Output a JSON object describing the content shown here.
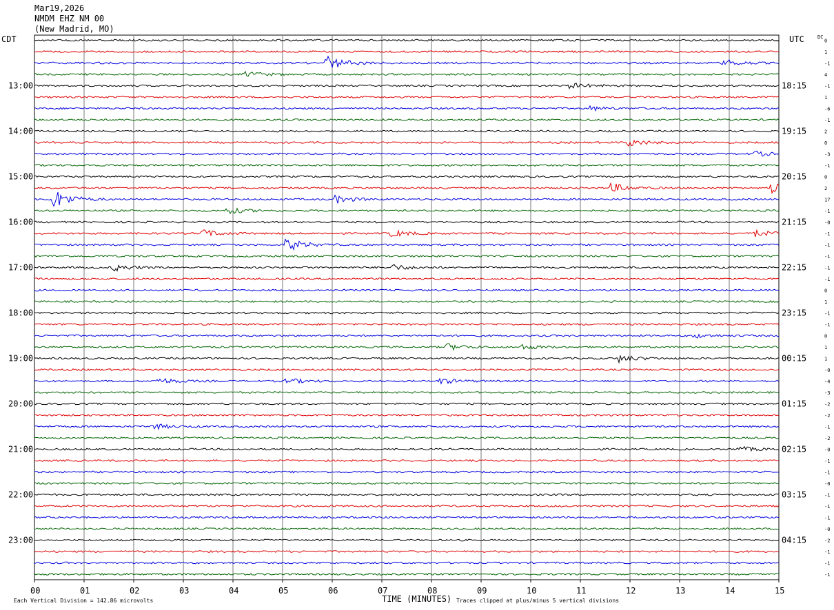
{
  "header": {
    "date": "Mar19,2026",
    "station": "NMDM EHZ NM 00",
    "location": "(New Madrid, MO)"
  },
  "chart_data": {
    "type": "line",
    "title": "",
    "left_timezone": "CDT",
    "right_timezone": "UTC",
    "dc_label": "DC",
    "xlabel": "TIME (MINUTES)",
    "x_ticks": [
      "00",
      "01",
      "02",
      "03",
      "04",
      "05",
      "06",
      "07",
      "08",
      "09",
      "10",
      "11",
      "12",
      "13",
      "14",
      "15"
    ],
    "xlim": [
      0,
      15
    ],
    "left_hour_labels": [
      "13:00",
      "14:00",
      "15:00",
      "16:00",
      "17:00",
      "18:00",
      "19:00",
      "20:00",
      "21:00",
      "22:00",
      "23:00"
    ],
    "right_hour_labels": [
      "18:15",
      "19:15",
      "20:15",
      "21:15",
      "22:15",
      "23:15",
      "00:15",
      "01:15",
      "02:15",
      "03:15",
      "04:15"
    ],
    "first_labeled_trace_index": 4,
    "traces_per_hour": 4,
    "trace_colors": [
      "#000000",
      "#e00000",
      "#0000e0",
      "#006400"
    ],
    "trace_count": 48,
    "dc_offsets": [
      "0",
      "1",
      "-1",
      "4",
      "-1",
      "1",
      "-6",
      "-1",
      "2",
      "0",
      "-3",
      "-1",
      "0",
      "2",
      "17",
      "-1",
      "-0",
      "-1",
      "-1",
      "-1",
      "-1",
      "-1",
      "0",
      "1",
      "-1",
      "-1",
      "0",
      "1",
      "1",
      "-0",
      "-4",
      "-3",
      "-2",
      "-2",
      "-1",
      "-2",
      "-0",
      "-1",
      "-1",
      "-0",
      "-1",
      "-1",
      "-1",
      "-0",
      "-2",
      "-1",
      "-1",
      "-1"
    ],
    "events": [
      {
        "trace": 2,
        "minute": 5.9,
        "amplitude": 1.6
      },
      {
        "trace": 2,
        "minute": 13.9,
        "amplitude": 0.8
      },
      {
        "trace": 3,
        "minute": 4.3,
        "amplitude": 0.6
      },
      {
        "trace": 4,
        "minute": 10.8,
        "amplitude": 0.6
      },
      {
        "trace": 6,
        "minute": 11.2,
        "amplitude": 0.5
      },
      {
        "trace": 9,
        "minute": 11.95,
        "amplitude": 0.9
      },
      {
        "trace": 10,
        "minute": 14.5,
        "amplitude": 0.6
      },
      {
        "trace": 13,
        "minute": 11.65,
        "amplitude": 1.0
      },
      {
        "trace": 13,
        "minute": 14.8,
        "amplitude": 1.4
      },
      {
        "trace": 14,
        "minute": 0.4,
        "amplitude": 2.2
      },
      {
        "trace": 14,
        "minute": 6.1,
        "amplitude": 0.8
      },
      {
        "trace": 15,
        "minute": 3.9,
        "amplitude": 0.7
      },
      {
        "trace": 17,
        "minute": 3.4,
        "amplitude": 0.8
      },
      {
        "trace": 17,
        "minute": 7.2,
        "amplitude": 0.8
      },
      {
        "trace": 17,
        "minute": 14.5,
        "amplitude": 0.8
      },
      {
        "trace": 18,
        "minute": 5.1,
        "amplitude": 1.4
      },
      {
        "trace": 20,
        "minute": 1.6,
        "amplitude": 0.8
      },
      {
        "trace": 20,
        "minute": 7.2,
        "amplitude": 0.7
      },
      {
        "trace": 26,
        "minute": 13.3,
        "amplitude": 0.5
      },
      {
        "trace": 27,
        "minute": 8.3,
        "amplitude": 0.8
      },
      {
        "trace": 27,
        "minute": 9.8,
        "amplitude": 0.6
      },
      {
        "trace": 28,
        "minute": 11.8,
        "amplitude": 0.8
      },
      {
        "trace": 30,
        "minute": 2.5,
        "amplitude": 0.7
      },
      {
        "trace": 30,
        "minute": 5.1,
        "amplitude": 0.6
      },
      {
        "trace": 30,
        "minute": 8.2,
        "amplitude": 0.6
      },
      {
        "trace": 34,
        "minute": 2.4,
        "amplitude": 0.6
      },
      {
        "trace": 36,
        "minute": 14.2,
        "amplitude": 0.6
      }
    ],
    "footer_left": "Each Vertical Division =  142.86 microvolts",
    "footer_right": "Traces clipped at plus/minus 5 vertical divisions"
  }
}
